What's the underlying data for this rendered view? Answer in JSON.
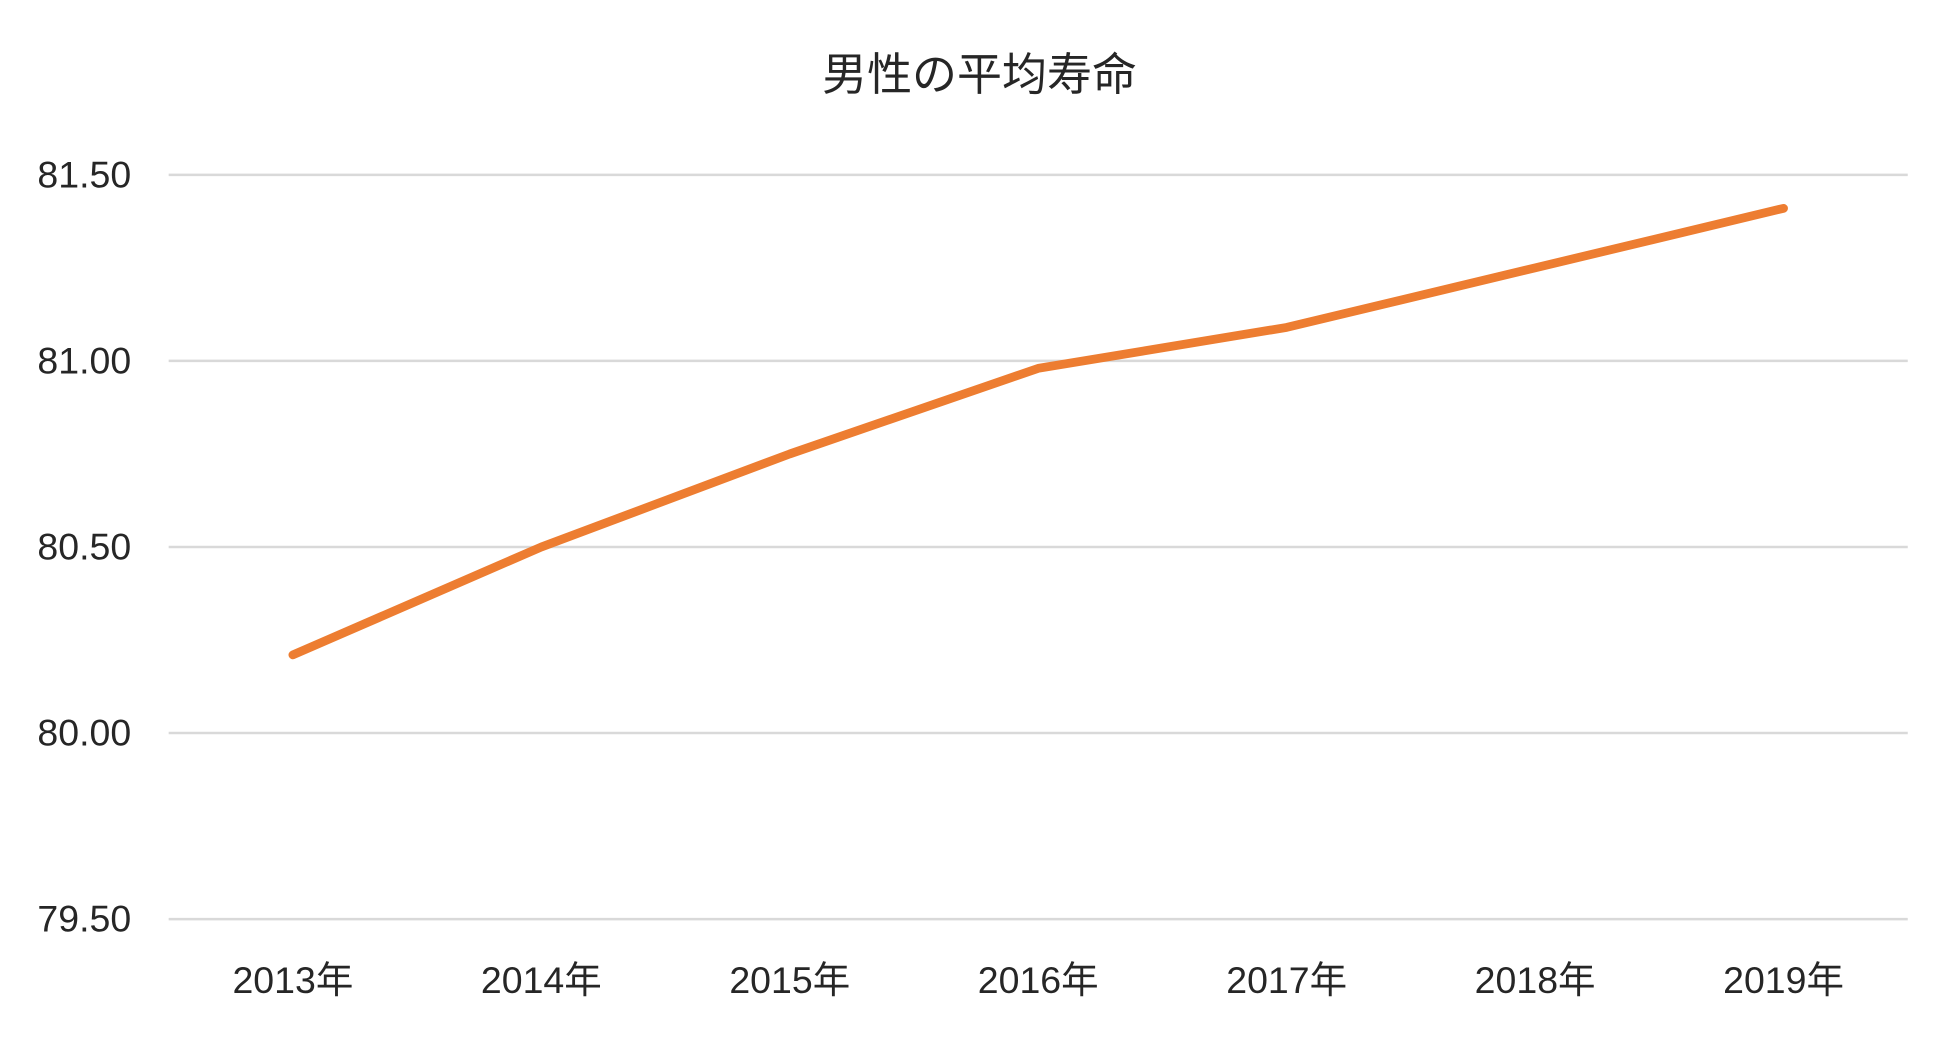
{
  "chart_data": {
    "type": "line",
    "title": "男性の平均寿命",
    "xlabel": "",
    "ylabel": "",
    "categories": [
      "2013年",
      "2014年",
      "2015年",
      "2016年",
      "2017年",
      "2018年",
      "2019年"
    ],
    "series": [
      {
        "values": [
          80.21,
          80.5,
          80.75,
          80.98,
          81.09,
          81.25,
          81.41
        ],
        "color": "#ED7D31"
      }
    ],
    "ylim": [
      79.5,
      81.5
    ],
    "yticks": [
      "79.50",
      "80.00",
      "80.50",
      "81.00",
      "81.50"
    ],
    "grid": true,
    "gridColor": "#D9D9D9",
    "legend": "none"
  }
}
